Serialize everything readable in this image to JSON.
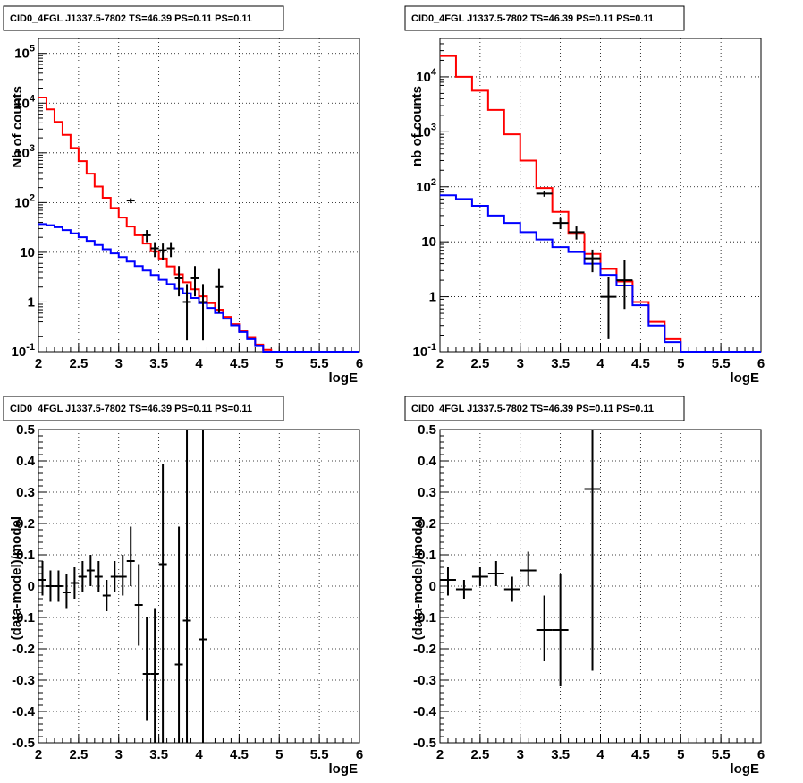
{
  "colors": {
    "model_total": "#ff0000",
    "model_background": "#0000ff",
    "data": "#000000",
    "grid": "#000000"
  },
  "chart_data": [
    {
      "type": "line",
      "title": "CID0_4FGL J1337.5-7802 TS=46.39 PS=0.11 PS=0.11",
      "xlabel": "logE",
      "ylabel": "Nb of counts",
      "xlim": [
        2,
        6
      ],
      "ylim": [
        0.1,
        200000
      ],
      "yscale": "log",
      "grid": true,
      "xticks": [
        "2",
        "2.5",
        "3",
        "3.5",
        "4",
        "4.5",
        "5",
        "5.5",
        "6"
      ],
      "yticks": [
        {
          "value": 0.1,
          "base": "10",
          "exp": "-1"
        },
        {
          "value": 1,
          "base": "1",
          "exp": ""
        },
        {
          "value": 10,
          "base": "10",
          "exp": ""
        },
        {
          "value": 100,
          "base": "10",
          "exp": "2"
        },
        {
          "value": 1000,
          "base": "10",
          "exp": "3"
        },
        {
          "value": 10000,
          "base": "10",
          "exp": "4"
        },
        {
          "value": 100000,
          "base": "10",
          "exp": "5"
        }
      ],
      "series": [
        {
          "type": "step",
          "color": "#ff0000",
          "edges": [
            2.0,
            2.1,
            2.2,
            2.3,
            2.4,
            2.5,
            2.6,
            2.7,
            2.8,
            2.9,
            3.0,
            3.1,
            3.2,
            3.3,
            3.4,
            3.5,
            3.6,
            3.7,
            3.8,
            3.9,
            4.0,
            4.1,
            4.2,
            4.3,
            4.4,
            4.5,
            4.6,
            4.7,
            4.8,
            4.9,
            5.0,
            5.1,
            5.2,
            5.3,
            5.4,
            5.5,
            5.6,
            5.7,
            5.8,
            5.9,
            6.0
          ],
          "values": [
            13000,
            7500,
            4200,
            2300,
            1250,
            680,
            380,
            210,
            125,
            78,
            50,
            33,
            22,
            15,
            10.5,
            7.5,
            5.2,
            3.6,
            2.5,
            1.8,
            1.3,
            0.95,
            0.7,
            0.5,
            0.36,
            0.26,
            0.19,
            0.14,
            0.11,
            0.1,
            0.1,
            0.1,
            0.1,
            0.1,
            0.1,
            0.1,
            0.1,
            0.1,
            0.1,
            0.1
          ]
        },
        {
          "type": "step",
          "color": "#0000ff",
          "edges": [
            2.0,
            2.1,
            2.2,
            2.3,
            2.4,
            2.5,
            2.6,
            2.7,
            2.8,
            2.9,
            3.0,
            3.1,
            3.2,
            3.3,
            3.4,
            3.5,
            3.6,
            3.7,
            3.8,
            3.9,
            4.0,
            4.1,
            4.2,
            4.3,
            4.4,
            4.5,
            4.6,
            4.7,
            4.8,
            4.9,
            5.0,
            5.1,
            5.2,
            5.3,
            5.4,
            5.5,
            5.6,
            5.7,
            5.8,
            5.9,
            6.0
          ],
          "values": [
            37,
            35,
            32,
            28,
            24,
            20,
            17,
            14,
            11.5,
            9.5,
            8,
            6.5,
            5.3,
            4.3,
            3.5,
            2.8,
            2.3,
            1.85,
            1.5,
            1.2,
            0.95,
            0.76,
            0.6,
            0.46,
            0.34,
            0.25,
            0.18,
            0.13,
            0.1,
            0.1,
            0.1,
            0.1,
            0.1,
            0.1,
            0.1,
            0.1,
            0.1,
            0.1,
            0.1,
            0.1
          ]
        },
        {
          "type": "points",
          "color": "#000000",
          "x": [
            3.15,
            3.35,
            3.45,
            3.55,
            3.65,
            3.75,
            3.85,
            3.95,
            4.05,
            4.25
          ],
          "xerr": 0.05,
          "y": [
            110,
            22,
            12,
            11,
            12,
            3,
            1,
            3,
            1,
            2
          ],
          "ylo": [
            97,
            16,
            8,
            7,
            8,
            1.3,
            0.17,
            1.3,
            0.17,
            0.6
          ],
          "yhi": [
            122,
            28,
            16,
            15,
            16,
            5.3,
            2.3,
            5.3,
            2.3,
            4.6
          ]
        }
      ]
    },
    {
      "type": "line",
      "title": "CID0_4FGL J1337.5-7802 TS=46.39 PS=0.11 PS=0.11",
      "xlabel": "logE",
      "ylabel": "nb of counts",
      "xlim": [
        2,
        6
      ],
      "ylim": [
        0.1,
        50000
      ],
      "yscale": "log",
      "grid": true,
      "xticks": [
        "2",
        "2.5",
        "3",
        "3.5",
        "4",
        "4.5",
        "5",
        "5.5",
        "6"
      ],
      "yticks": [
        {
          "value": 0.1,
          "base": "10",
          "exp": "-1"
        },
        {
          "value": 1,
          "base": "1",
          "exp": ""
        },
        {
          "value": 10,
          "base": "10",
          "exp": ""
        },
        {
          "value": 100,
          "base": "10",
          "exp": "2"
        },
        {
          "value": 1000,
          "base": "10",
          "exp": "3"
        },
        {
          "value": 10000,
          "base": "10",
          "exp": "4"
        }
      ],
      "series": [
        {
          "type": "step",
          "color": "#ff0000",
          "edges": [
            2.0,
            2.2,
            2.4,
            2.6,
            2.8,
            3.0,
            3.2,
            3.4,
            3.6,
            3.8,
            4.0,
            4.2,
            4.4,
            4.6,
            4.8,
            5.0,
            5.2,
            5.4,
            5.6,
            5.8,
            6.0
          ],
          "values": [
            24000,
            10000,
            5600,
            2500,
            900,
            300,
            95,
            35,
            14,
            6,
            3.2,
            1.9,
            0.8,
            0.35,
            0.17,
            0.1,
            0.1,
            0.1,
            0.1,
            0.1
          ]
        },
        {
          "type": "step",
          "color": "#0000ff",
          "edges": [
            2.0,
            2.2,
            2.4,
            2.6,
            2.8,
            3.0,
            3.2,
            3.4,
            3.6,
            3.8,
            4.0,
            4.2,
            4.4,
            4.6,
            4.8,
            5.0,
            5.2,
            5.4,
            5.6,
            5.8,
            6.0
          ],
          "values": [
            70,
            60,
            45,
            30,
            22,
            15,
            11,
            8,
            6.5,
            4,
            2.5,
            1.6,
            0.7,
            0.3,
            0.15,
            0.1,
            0.1,
            0.1,
            0.1,
            0.1
          ]
        },
        {
          "type": "points",
          "color": "#000000",
          "x": [
            3.3,
            3.5,
            3.7,
            3.9,
            4.1,
            4.3
          ],
          "xerr": 0.1,
          "y": [
            75,
            22,
            15,
            5,
            1,
            2
          ],
          "ylo": [
            66,
            17,
            11,
            2.8,
            0.17,
            0.6
          ],
          "yhi": [
            84,
            27,
            19,
            7.2,
            2.3,
            4.6
          ]
        }
      ]
    },
    {
      "type": "scatter",
      "title": "CID0_4FGL J1337.5-7802 TS=46.39 PS=0.11 PS=0.11",
      "xlabel": "logE",
      "ylabel": "(data-model)/model",
      "xlim": [
        2,
        6
      ],
      "ylim": [
        -0.5,
        0.5
      ],
      "grid": true,
      "xticks": [
        "2",
        "2.5",
        "3",
        "3.5",
        "4",
        "4.5",
        "5",
        "5.5",
        "6"
      ],
      "yticks": [
        "-0.5",
        "-0.4",
        "-0.3",
        "-0.2",
        "-0.1",
        "0",
        "0.1",
        "0.2",
        "0.3",
        "0.4",
        "0.5"
      ],
      "series": [
        {
          "type": "points",
          "color": "#000000",
          "xerr": 0.05,
          "x": [
            2.05,
            2.15,
            2.25,
            2.35,
            2.45,
            2.55,
            2.65,
            2.75,
            2.85,
            2.95,
            3.05,
            3.15,
            3.25,
            3.35,
            3.45,
            3.55,
            3.75,
            3.85,
            4.05
          ],
          "y": [
            0.02,
            0.0,
            0.0,
            -0.02,
            0.01,
            0.03,
            0.05,
            0.03,
            -0.03,
            0.03,
            0.03,
            0.08,
            -0.06,
            -0.28,
            -0.28,
            0.07,
            -0.25,
            -0.11,
            -0.17
          ],
          "ylo": [
            -0.03,
            -0.05,
            -0.05,
            -0.07,
            -0.04,
            -0.02,
            0.0,
            -0.02,
            -0.08,
            -0.02,
            -0.03,
            0.0,
            -0.19,
            -0.43,
            -0.5,
            -0.5,
            -0.5,
            -0.5,
            -0.5
          ],
          "yhi": [
            0.08,
            0.05,
            0.05,
            0.04,
            0.06,
            0.08,
            0.1,
            0.08,
            0.02,
            0.08,
            0.1,
            0.19,
            0.07,
            -0.1,
            -0.07,
            0.39,
            0.19,
            0.5,
            0.5
          ]
        }
      ]
    },
    {
      "type": "scatter",
      "title": "CID0_4FGL J1337.5-7802 TS=46.39 PS=0.11 PS=0.11",
      "xlabel": "logE",
      "ylabel": "(data-model)/model",
      "xlim": [
        2,
        6
      ],
      "ylim": [
        -0.5,
        0.5
      ],
      "grid": true,
      "xticks": [
        "2",
        "2.5",
        "3",
        "3.5",
        "4",
        "4.5",
        "5",
        "5.5",
        "6"
      ],
      "yticks": [
        "-0.5",
        "-0.4",
        "-0.3",
        "-0.2",
        "-0.1",
        "0",
        "0.1",
        "0.2",
        "0.3",
        "0.4",
        "0.5"
      ],
      "series": [
        {
          "type": "points",
          "color": "#000000",
          "xerr": 0.1,
          "x": [
            2.1,
            2.3,
            2.5,
            2.7,
            2.9,
            3.1,
            3.3,
            3.5,
            3.9
          ],
          "y": [
            0.02,
            -0.01,
            0.03,
            0.04,
            -0.01,
            0.05,
            -0.14,
            -0.14,
            0.31
          ],
          "ylo": [
            -0.03,
            -0.04,
            0.0,
            0.0,
            -0.05,
            0.0,
            -0.24,
            -0.32,
            -0.27
          ],
          "yhi": [
            0.06,
            0.02,
            0.06,
            0.08,
            0.03,
            0.11,
            -0.03,
            0.04,
            0.5
          ]
        }
      ]
    }
  ]
}
